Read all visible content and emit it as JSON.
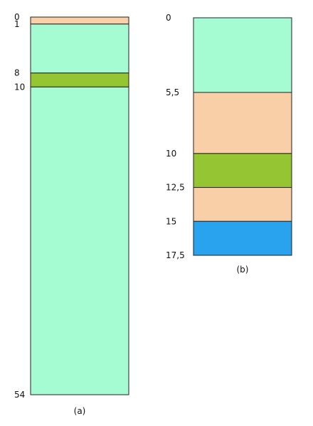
{
  "columns": [
    {
      "id": "a",
      "caption": "(a)",
      "total_depth": 54,
      "depth_labels": [
        "0",
        "1",
        "8",
        "10",
        "54"
      ],
      "layers": [
        {
          "top": 0,
          "bottom": 1,
          "color": "#F9CFA8"
        },
        {
          "top": 1,
          "bottom": 8,
          "color": "#A6FCD2"
        },
        {
          "top": 8,
          "bottom": 10,
          "color": "#95C532"
        },
        {
          "top": 10,
          "bottom": 54,
          "color": "#A6FCD2"
        }
      ]
    },
    {
      "id": "b",
      "caption": "(b)",
      "total_depth": 17.5,
      "depth_labels": [
        "0",
        "5,5",
        "10",
        "12,5",
        "15",
        "17,5"
      ],
      "layers": [
        {
          "top": 0,
          "bottom": 5.5,
          "color": "#A6FCD2"
        },
        {
          "top": 5.5,
          "bottom": 10,
          "color": "#F9CFA8"
        },
        {
          "top": 10,
          "bottom": 12.5,
          "color": "#95C532"
        },
        {
          "top": 12.5,
          "bottom": 15,
          "color": "#F9CFA8"
        },
        {
          "top": 15,
          "bottom": 17.5,
          "color": "#2AA3EE"
        }
      ]
    }
  ]
}
